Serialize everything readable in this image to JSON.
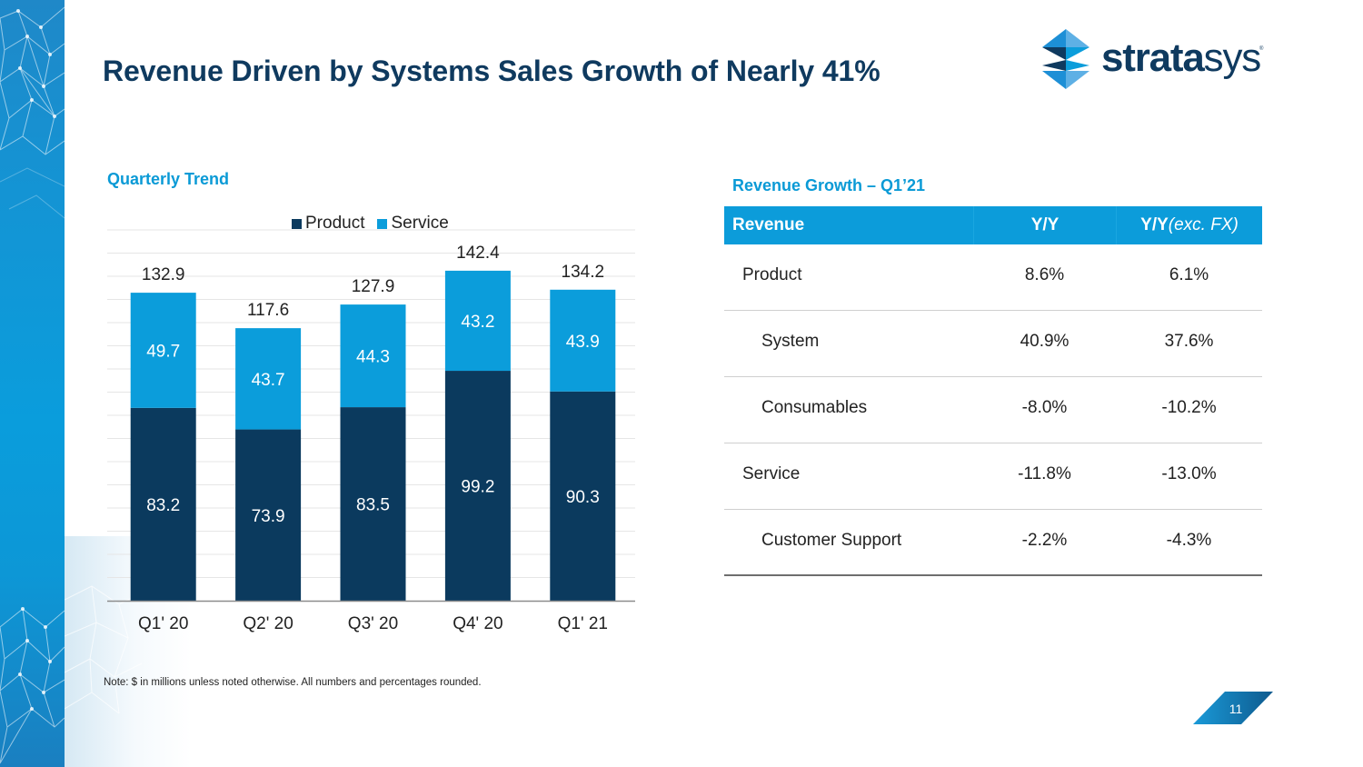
{
  "slide": {
    "title": "Revenue Driven by Systems Sales Growth of Nearly 41%",
    "page_number": "11",
    "note": "Note: $ in millions unless noted otherwise. All numbers and percentages rounded.",
    "logo": {
      "bold": "strata",
      "light": "sys",
      "mark": "stratasys-logo-icon"
    }
  },
  "colors": {
    "title": "#0f3a5f",
    "accent": "#0a9ad6",
    "product": "#0b3a5e",
    "service": "#0b9ddb",
    "table_header": "#0c9cda"
  },
  "chart_section": {
    "label": "Quarterly Trend"
  },
  "chart_data": {
    "type": "bar",
    "stacked": true,
    "title": "Quarterly Trend",
    "xlabel": "",
    "ylabel": "",
    "categories": [
      "Q1' 20",
      "Q2' 20",
      "Q3' 20",
      "Q4' 20",
      "Q1' 21"
    ],
    "series": [
      {
        "name": "Product",
        "values": [
          83.2,
          73.9,
          83.5,
          99.2,
          90.3
        ],
        "color": "#0b3a5e"
      },
      {
        "name": "Service",
        "values": [
          49.7,
          43.7,
          44.3,
          43.2,
          43.9
        ],
        "color": "#0b9ddb"
      }
    ],
    "totals": [
      132.9,
      117.6,
      127.9,
      142.4,
      134.2
    ],
    "ylim": [
      0,
      160
    ],
    "grid": true,
    "grid_step": 10,
    "y_axis_visible": false,
    "legend": "top-center",
    "units": "$ millions"
  },
  "table_section": {
    "label": "Revenue Growth – Q1’21",
    "headers": {
      "col1": "Revenue",
      "col2": "Y/Y",
      "col3_bold": "Y/Y",
      "col3_italic": "(exc. FX)"
    },
    "rows": [
      {
        "label": "Product",
        "yy": "8.6%",
        "yy_exfx": "6.1%",
        "indent": false
      },
      {
        "label": "System",
        "yy": "40.9%",
        "yy_exfx": "37.6%",
        "indent": true
      },
      {
        "label": "Consumables",
        "yy": "-8.0%",
        "yy_exfx": "-10.2%",
        "indent": true
      },
      {
        "label": "Service",
        "yy": "-11.8%",
        "yy_exfx": "-13.0%",
        "indent": false
      },
      {
        "label": "Customer Support",
        "yy": "-2.2%",
        "yy_exfx": "-4.3%",
        "indent": true
      }
    ]
  }
}
